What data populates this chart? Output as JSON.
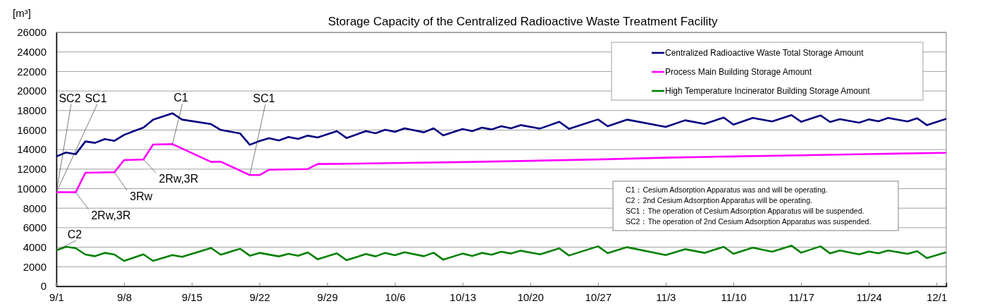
{
  "chart_data": {
    "type": "line",
    "title": "Storage Capacity of the Centralized Radioactive Waste Treatment Facility",
    "ylabel": "[m³]",
    "xlim": [
      "--09-01",
      "--12-02"
    ],
    "xticks": [
      {
        "value": "--09-01",
        "label": "9/1"
      },
      {
        "value": "--09-08",
        "label": "9/8"
      },
      {
        "value": "--09-15",
        "label": "9/15"
      },
      {
        "value": "--09-22",
        "label": "9/22"
      },
      {
        "value": "--09-29",
        "label": "9/29"
      },
      {
        "value": "--10-06",
        "label": "10/6"
      },
      {
        "value": "--10-13",
        "label": "10/13"
      },
      {
        "value": "--10-20",
        "label": "10/20"
      },
      {
        "value": "--10-27",
        "label": "10/27"
      },
      {
        "value": "--11-03",
        "label": "11/3"
      },
      {
        "value": "--11-10",
        "label": "11/10"
      },
      {
        "value": "--11-17",
        "label": "11/17"
      },
      {
        "value": "--11-24",
        "label": "11/24"
      },
      {
        "value": "--12-01",
        "label": "12/1"
      }
    ],
    "ylim": [
      0,
      26000
    ],
    "yticks": [
      0,
      2000,
      4000,
      6000,
      8000,
      10000,
      12000,
      14000,
      16000,
      18000,
      20000,
      22000,
      24000,
      26000
    ],
    "grid": "y",
    "legend": "top right",
    "marker": "none",
    "line_style": "solid",
    "series": [
      {
        "name": "Centralized Radioactive Waste Total Storage Amount",
        "color": "#000080",
        "x": [
          "--09-01",
          "--09-02",
          "--09-03",
          "--09-04",
          "--09-05",
          "--09-06",
          "--09-07",
          "--09-08",
          "--09-09",
          "--09-10",
          "--09-11",
          "--09-13",
          "--09-14",
          "--09-17",
          "--09-18",
          "--09-20",
          "--09-21",
          "--09-22",
          "--09-23",
          "--09-24",
          "--09-25",
          "--09-26",
          "--09-27",
          "--09-28",
          "--09-30",
          "--10-01",
          "--10-03",
          "--10-04",
          "--10-05",
          "--10-06",
          "--10-07",
          "--10-09",
          "--10-10",
          "--10-11",
          "--10-13",
          "--10-14",
          "--10-15",
          "--10-16",
          "--10-17",
          "--10-18",
          "--10-19",
          "--10-21",
          "--10-23",
          "--10-24",
          "--10-27",
          "--10-28",
          "--10-30",
          "--11-03",
          "--11-05",
          "--11-07",
          "--11-09",
          "--11-10",
          "--11-12",
          "--11-14",
          "--11-16",
          "--11-17",
          "--11-19",
          "--11-20",
          "--11-21",
          "--11-23",
          "--11-24",
          "--11-25",
          "--11-26",
          "--11-28",
          "--11-29",
          "--11-30",
          "--12-02"
        ],
        "values": [
          13300,
          13700,
          13530,
          14830,
          14690,
          15070,
          14900,
          15500,
          15890,
          16250,
          17070,
          17720,
          17070,
          16610,
          16010,
          15650,
          14490,
          14880,
          15170,
          14930,
          15290,
          15090,
          15430,
          15240,
          15890,
          15190,
          15890,
          15670,
          16030,
          15820,
          16180,
          15770,
          16180,
          15450,
          16100,
          15890,
          16250,
          16060,
          16390,
          16180,
          16510,
          16150,
          16850,
          16130,
          17090,
          16390,
          17070,
          16320,
          17000,
          16630,
          17280,
          16560,
          17240,
          16880,
          17530,
          16850,
          17500,
          16830,
          17120,
          16760,
          17090,
          16900,
          17240,
          16880,
          17210,
          16510,
          17160
        ]
      },
      {
        "name": "Process Main Building Storage Amount",
        "color": "#ff00ff",
        "x": [
          "--09-01",
          "--09-03",
          "--09-04",
          "--09-07",
          "--09-08",
          "--09-10",
          "--09-11",
          "--09-13",
          "--09-17",
          "--09-18",
          "--09-21",
          "--09-22",
          "--09-23",
          "--09-27",
          "--09-28",
          "--09-30",
          "--10-06",
          "--10-13",
          "--10-20",
          "--10-27",
          "--11-03",
          "--11-10",
          "--11-17",
          "--11-24",
          "--12-02"
        ],
        "values": [
          9630,
          9630,
          11630,
          11680,
          12930,
          12980,
          14520,
          14560,
          12740,
          12760,
          11390,
          11390,
          11940,
          12010,
          12520,
          12540,
          12620,
          12720,
          12850,
          12990,
          13170,
          13300,
          13420,
          13540,
          13670
        ]
      },
      {
        "name": "High Temperature Incinerator Building Storage Amount",
        "color": "#008000",
        "x": [
          "--09-01",
          "--09-02",
          "--09-03",
          "--09-04",
          "--09-05",
          "--09-06",
          "--09-07",
          "--09-08",
          "--09-10",
          "--09-11",
          "--09-13",
          "--09-14",
          "--09-17",
          "--09-18",
          "--09-20",
          "--09-21",
          "--09-22",
          "--09-24",
          "--09-25",
          "--09-26",
          "--09-27",
          "--09-28",
          "--09-30",
          "--10-01",
          "--10-03",
          "--10-04",
          "--10-05",
          "--10-06",
          "--10-07",
          "--10-09",
          "--10-10",
          "--10-11",
          "--10-13",
          "--10-14",
          "--10-15",
          "--10-16",
          "--10-17",
          "--10-18",
          "--10-19",
          "--10-21",
          "--10-23",
          "--10-24",
          "--10-27",
          "--10-28",
          "--10-30",
          "--11-03",
          "--11-05",
          "--11-07",
          "--11-09",
          "--11-10",
          "--11-12",
          "--11-14",
          "--11-16",
          "--11-17",
          "--11-19",
          "--11-20",
          "--11-21",
          "--11-23",
          "--11-24",
          "--11-25",
          "--11-26",
          "--11-28",
          "--11-29",
          "--11-30",
          "--12-02"
        ],
        "values": [
          3680,
          4040,
          3900,
          3250,
          3080,
          3420,
          3250,
          2600,
          3270,
          2600,
          3200,
          3010,
          3920,
          3230,
          3850,
          3130,
          3420,
          3060,
          3320,
          3130,
          3470,
          2770,
          3370,
          2670,
          3300,
          3060,
          3420,
          3180,
          3490,
          3080,
          3440,
          2720,
          3350,
          3110,
          3420,
          3230,
          3540,
          3350,
          3640,
          3270,
          3880,
          3150,
          4090,
          3390,
          4000,
          3200,
          3800,
          3420,
          4040,
          3320,
          3950,
          3540,
          4160,
          3440,
          4090,
          3370,
          3660,
          3270,
          3560,
          3370,
          3660,
          3320,
          3590,
          2890,
          3490
        ]
      }
    ],
    "annotations": [
      {
        "text": "SC2",
        "x": "--09-01",
        "y": 9630
      },
      {
        "text": "SC1",
        "x": "--09-01",
        "y": 9630
      },
      {
        "text": "2Rw,3R",
        "x": "--09-03",
        "y": 9630
      },
      {
        "text": "3Rw",
        "x": "--09-07",
        "y": 11680
      },
      {
        "text": "2Rw,3R",
        "x": "--09-10",
        "y": 12980
      },
      {
        "text": "C1",
        "x": "--09-13",
        "y": 14560
      },
      {
        "text": "SC1",
        "x": "--09-21",
        "y": 11390
      },
      {
        "text": "C2",
        "x": "--09-01",
        "y": 3680
      },
      "C1：Cesium Adsorption Apparatus was and will be operating.",
      "C2：2nd Cesium Adsorption Apparatus will be operating.",
      "SC1：The operation of Cesium Adsorption Apparatus will be suspended.",
      "SC2：The operation of 2nd Cesium Adsorption  Apparatus was suspended."
    ]
  }
}
